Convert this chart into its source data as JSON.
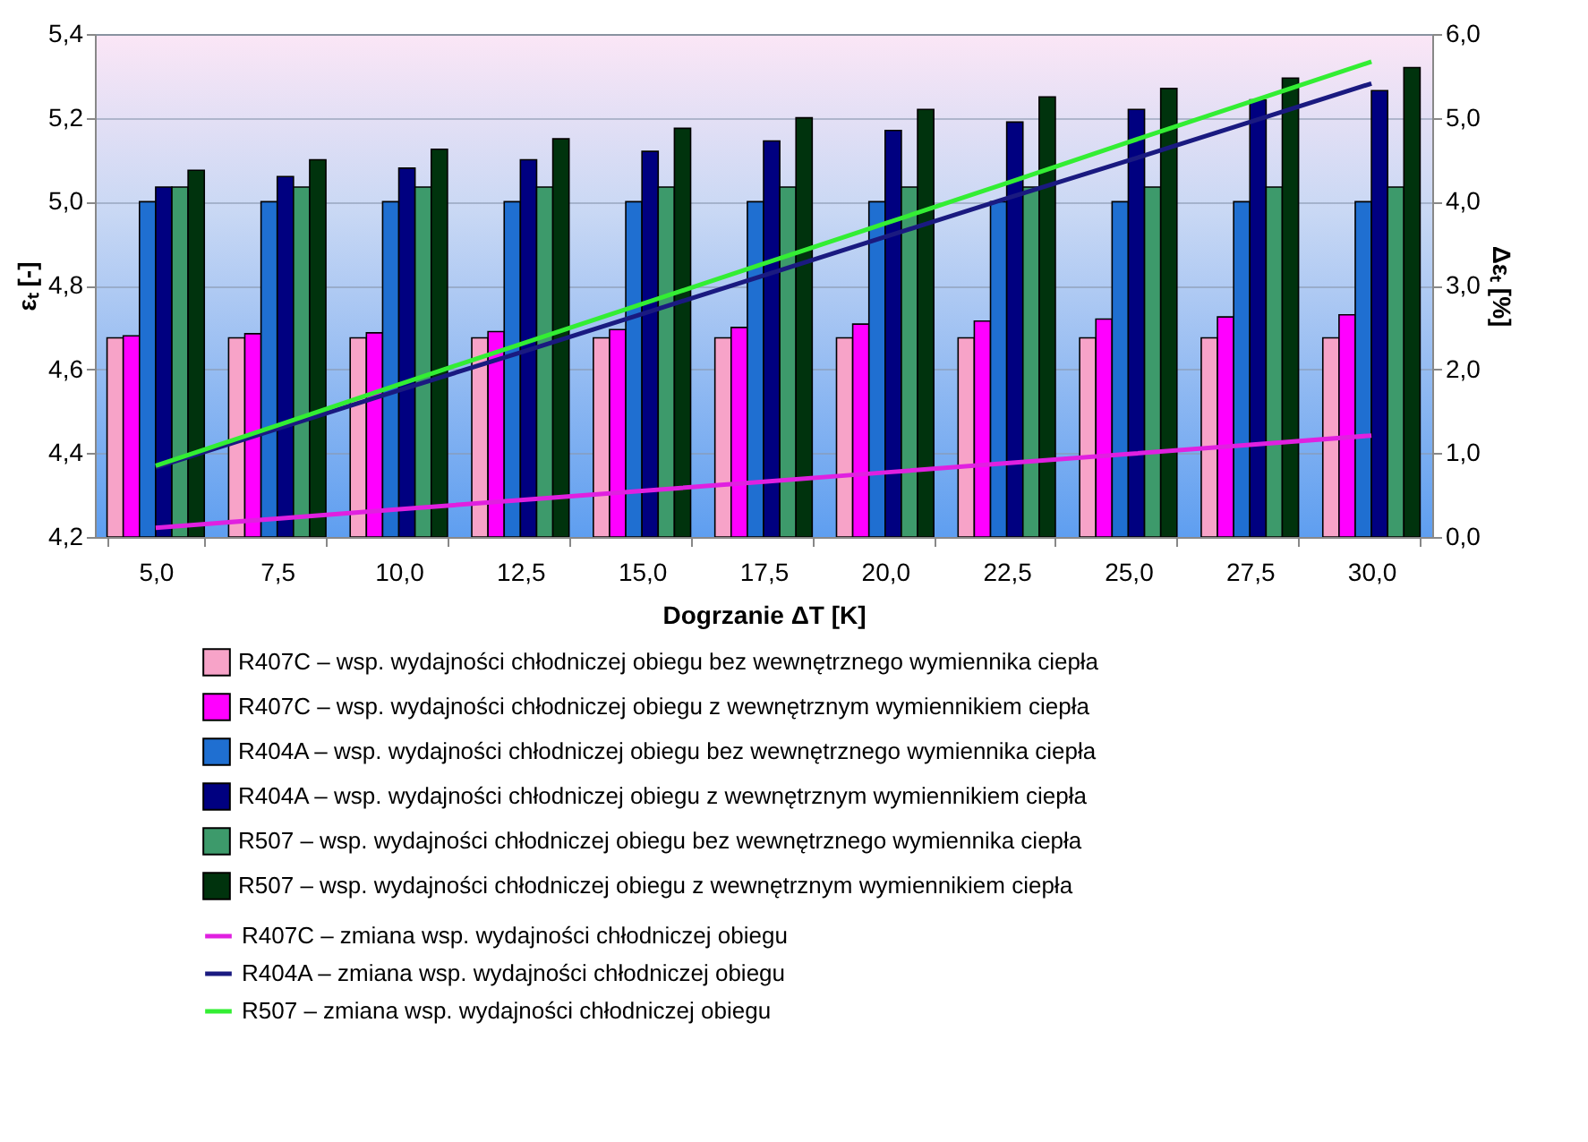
{
  "chart_data": {
    "type": "bar",
    "xlabel": "Dogrzanie ΔT [K]",
    "ylabel": "εₜ [-]",
    "y2label": "Δεₜ [%]",
    "categories": [
      "5,0",
      "7,5",
      "10,0",
      "12,5",
      "15,0",
      "17,5",
      "20,0",
      "22,5",
      "25,0",
      "27,5",
      "30,0"
    ],
    "ylim": [
      4.2,
      5.4
    ],
    "yticks": [
      {
        "value": 4.2,
        "label": "4,2"
      },
      {
        "value": 4.4,
        "label": "4,4"
      },
      {
        "value": 4.6,
        "label": "4,6"
      },
      {
        "value": 4.8,
        "label": "4,8"
      },
      {
        "value": 5.0,
        "label": "5,0"
      },
      {
        "value": 5.2,
        "label": "5,2"
      },
      {
        "value": 5.4,
        "label": "5,4"
      }
    ],
    "y2lim": [
      0,
      6
    ],
    "y2ticks": [
      {
        "value": 0,
        "label": "0,0"
      },
      {
        "value": 1,
        "label": "1,0"
      },
      {
        "value": 2,
        "label": "2,0"
      },
      {
        "value": 3,
        "label": "3,0"
      },
      {
        "value": 4,
        "label": "4,0"
      },
      {
        "value": 5,
        "label": "5,0"
      },
      {
        "value": 6,
        "label": "6,0"
      }
    ],
    "grid": "y",
    "legend": "bottom",
    "series": [
      {
        "name": "R407C – wsp. wydajności chłodniczej obiegu bez wewnętrznego wymiennika ciepła",
        "color": "#f7a3c8",
        "values": [
          4.675,
          4.675,
          4.675,
          4.675,
          4.675,
          4.675,
          4.675,
          4.675,
          4.675,
          4.675,
          4.675
        ]
      },
      {
        "name": "R407C – wsp. wydajności chłodniczej obiegu z wewnętrznym wymiennikiem ciepła",
        "color": "#ff00ff",
        "values": [
          4.68,
          4.685,
          4.687,
          4.69,
          4.695,
          4.7,
          4.708,
          4.715,
          4.72,
          4.725,
          4.73
        ]
      },
      {
        "name": "R404A – wsp. wydajności chłodniczej obiegu bez wewnętrznego wymiennika ciepła",
        "color": "#1f6fd1",
        "values": [
          5.0,
          5.0,
          5.0,
          5.0,
          5.0,
          5.0,
          5.0,
          5.0,
          5.0,
          5.0,
          5.0
        ]
      },
      {
        "name": "R404A – wsp. wydajności chłodniczej obiegu z wewnętrznym wymiennikiem ciepła",
        "color": "#000080",
        "values": [
          5.035,
          5.06,
          5.08,
          5.1,
          5.12,
          5.145,
          5.17,
          5.19,
          5.22,
          5.243,
          5.265
        ]
      },
      {
        "name": "R507 – wsp. wydajności chłodniczej obiegu bez wewnętrznego wymiennika ciepła",
        "color": "#3d9a6b",
        "values": [
          5.035,
          5.035,
          5.035,
          5.035,
          5.035,
          5.035,
          5.035,
          5.035,
          5.035,
          5.035,
          5.035
        ]
      },
      {
        "name": "R507 – wsp. wydajności chłodniczej obiegu z wewnętrznym wymiennikiem ciepła",
        "color": "#00330d",
        "values": [
          5.075,
          5.1,
          5.125,
          5.15,
          5.175,
          5.2,
          5.22,
          5.25,
          5.27,
          5.295,
          5.32
        ]
      },
      {
        "name": "R407C – zmiana wsp. wydajności chłodniczej obiegu",
        "type": "line",
        "axis": "y2",
        "color": "#e020e0",
        "values": [
          0.11,
          0.22,
          0.33,
          0.44,
          0.55,
          0.66,
          0.77,
          0.88,
          0.99,
          1.1,
          1.21
        ]
      },
      {
        "name": "R404A – zmiana wsp. wydajności chłodniczej obiegu",
        "type": "line",
        "axis": "y2",
        "color": "#1a1a80",
        "values": [
          0.83,
          1.29,
          1.75,
          2.2,
          2.66,
          3.12,
          3.58,
          4.04,
          4.49,
          4.95,
          5.41
        ]
      },
      {
        "name": "R507 – zmiana wsp. wydajności chłodniczej obiegu",
        "type": "line",
        "axis": "y2",
        "color": "#33ee33",
        "values": [
          0.85,
          1.33,
          1.82,
          2.3,
          2.78,
          3.26,
          3.74,
          4.22,
          4.71,
          5.19,
          5.67
        ]
      }
    ]
  }
}
